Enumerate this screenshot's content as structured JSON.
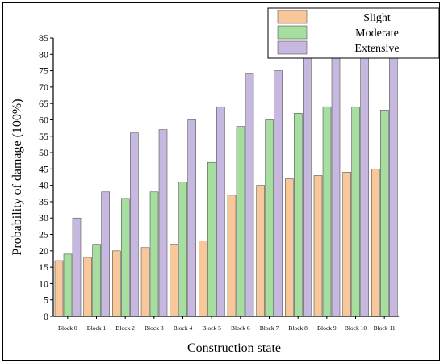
{
  "chart_data": {
    "type": "bar",
    "xlabel": "Construction state",
    "ylabel": "Probability of damage (100%)",
    "ylim": [
      0,
      85
    ],
    "ytick_step": 5,
    "categories": [
      "Block 0",
      "Block 1",
      "Block 2",
      "Block 3",
      "Block 4",
      "Block 5",
      "Block 6",
      "Block 7",
      "Block 8",
      "Block 9",
      "Block 10",
      "Block 11"
    ],
    "series": [
      {
        "name": "Slight",
        "color": "#f9c89a",
        "values": [
          17,
          18,
          20,
          21,
          22,
          23,
          37,
          40,
          42,
          43,
          44,
          45
        ]
      },
      {
        "name": "Moderate",
        "color": "#a6dea0",
        "values": [
          19,
          22,
          36,
          38,
          41,
          47,
          58,
          60,
          62,
          64,
          64,
          63
        ]
      },
      {
        "name": "Extensive",
        "color": "#c7b8e0",
        "values": [
          30,
          38,
          56,
          57,
          60,
          64,
          74,
          75,
          80,
          80,
          80,
          80
        ]
      }
    ],
    "legend": "top-right",
    "grid": false
  }
}
